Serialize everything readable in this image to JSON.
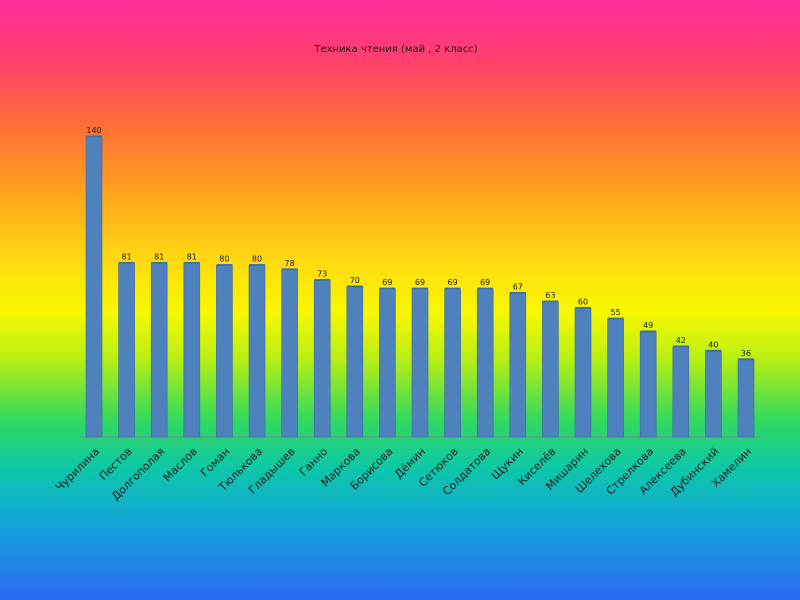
{
  "chart_data": {
    "type": "bar",
    "title": "Техника чтения (май , 2 класс)",
    "categories": [
      "Чурилина",
      "Пестов",
      "Долгополая",
      "Маслов",
      "Гоман",
      "Тюлькова",
      "Гладышев",
      "Ганно",
      "Маркова",
      "Борисова",
      "Дёмин",
      "Сетюков",
      "Солдатова",
      "Щукин",
      "Киселёв",
      "Мишарин",
      "Шелехова",
      "Стрелкова",
      "Алексеева",
      "Дубинский",
      "Хамелин"
    ],
    "values": [
      140,
      81,
      81,
      81,
      80,
      80,
      78,
      73,
      70,
      69,
      69,
      69,
      69,
      67,
      63,
      60,
      55,
      49,
      42,
      40,
      36
    ],
    "ylim": [
      0,
      140
    ],
    "grid": false,
    "legend": "none",
    "bar_color": "#4f81bd"
  }
}
